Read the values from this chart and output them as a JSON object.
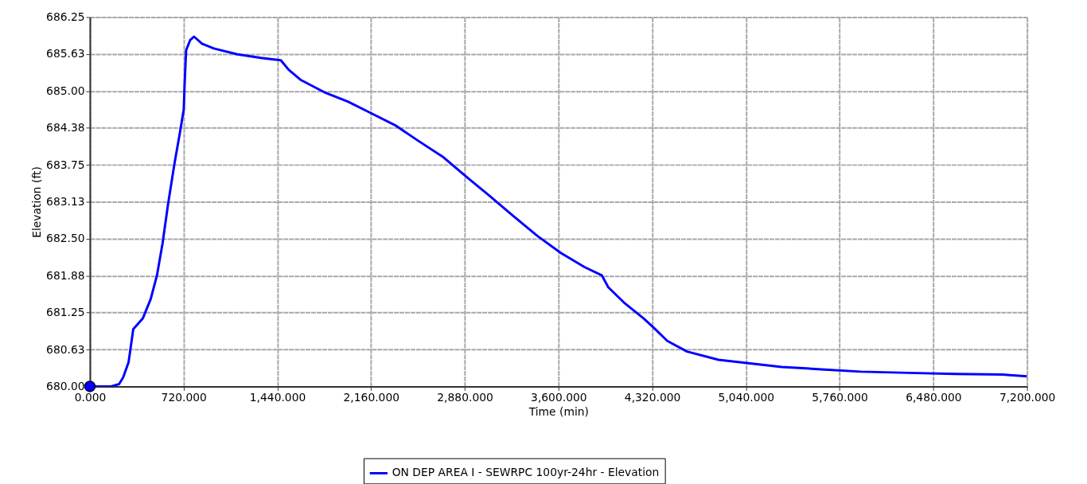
{
  "chart_data": {
    "type": "line",
    "xlabel": "Time (min)",
    "ylabel": "Elevation (ft)",
    "xlim": [
      0,
      7200
    ],
    "xticks": [
      {
        "value": 0,
        "label": "0.000"
      },
      {
        "value": 720,
        "label": "720.000"
      },
      {
        "value": 1440,
        "label": "1,440.000"
      },
      {
        "value": 2160,
        "label": "2,160.000"
      },
      {
        "value": 2880,
        "label": "2,880.000"
      },
      {
        "value": 3600,
        "label": "3,600.000"
      },
      {
        "value": 4320,
        "label": "4,320.000"
      },
      {
        "value": 5040,
        "label": "5,040.000"
      },
      {
        "value": 5760,
        "label": "5,760.000"
      },
      {
        "value": 6480,
        "label": "6,480.000"
      },
      {
        "value": 7200,
        "label": "7,200.000"
      }
    ],
    "ylim": [
      680,
      686.25
    ],
    "yticks": [
      {
        "value": 680,
        "label": "680.00"
      },
      {
        "value": 680.625,
        "label": "680.63"
      },
      {
        "value": 681.25,
        "label": "681.25"
      },
      {
        "value": 681.875,
        "label": "681.88"
      },
      {
        "value": 682.5,
        "label": "682.50"
      },
      {
        "value": 683.125,
        "label": "683.13"
      },
      {
        "value": 683.75,
        "label": "683.75"
      },
      {
        "value": 684.375,
        "label": "684.38"
      },
      {
        "value": 685,
        "label": "685.00"
      },
      {
        "value": 685.625,
        "label": "685.63"
      },
      {
        "value": 686.25,
        "label": "686.25"
      }
    ],
    "grid": true,
    "legend": "bottom",
    "line_style": "solid",
    "series": [
      {
        "name": "ON DEP AREA I - SEWRPC 100yr-24hr - Elevation",
        "color": "#0000ff",
        "x": [
          0,
          164,
          224,
          255,
          297,
          333,
          406,
          467,
          515,
          558,
          600,
          648,
          691,
          721,
          727,
          739,
          770,
          800,
          861,
          952,
          1133,
          1315,
          1467,
          1527,
          1618,
          1800,
          1982,
          2164,
          2345,
          2527,
          2709,
          2891,
          3073,
          3255,
          3436,
          3618,
          3800,
          3933,
          3982,
          4103,
          4255,
          4333,
          4436,
          4588,
          4830,
          5073,
          5315,
          5618,
          5921,
          6285,
          6648,
          7012,
          7200
        ],
        "values": [
          680.0,
          680.0,
          680.04,
          680.15,
          680.41,
          680.97,
          681.15,
          681.48,
          681.88,
          682.42,
          683.08,
          683.75,
          684.29,
          684.69,
          685.09,
          685.69,
          685.86,
          685.92,
          685.8,
          685.72,
          685.62,
          685.56,
          685.52,
          685.36,
          685.19,
          684.98,
          684.82,
          684.62,
          684.42,
          684.15,
          683.89,
          683.55,
          683.22,
          682.88,
          682.55,
          682.26,
          682.02,
          681.88,
          681.68,
          681.42,
          681.15,
          680.99,
          680.77,
          680.59,
          680.45,
          680.39,
          680.33,
          680.29,
          680.25,
          680.23,
          680.21,
          680.2,
          680.17
        ]
      },
      {
        "color": "#0000ff",
        "type": "scatter",
        "marker": "circle",
        "x": [
          0
        ],
        "values": [
          680.0
        ]
      }
    ]
  }
}
